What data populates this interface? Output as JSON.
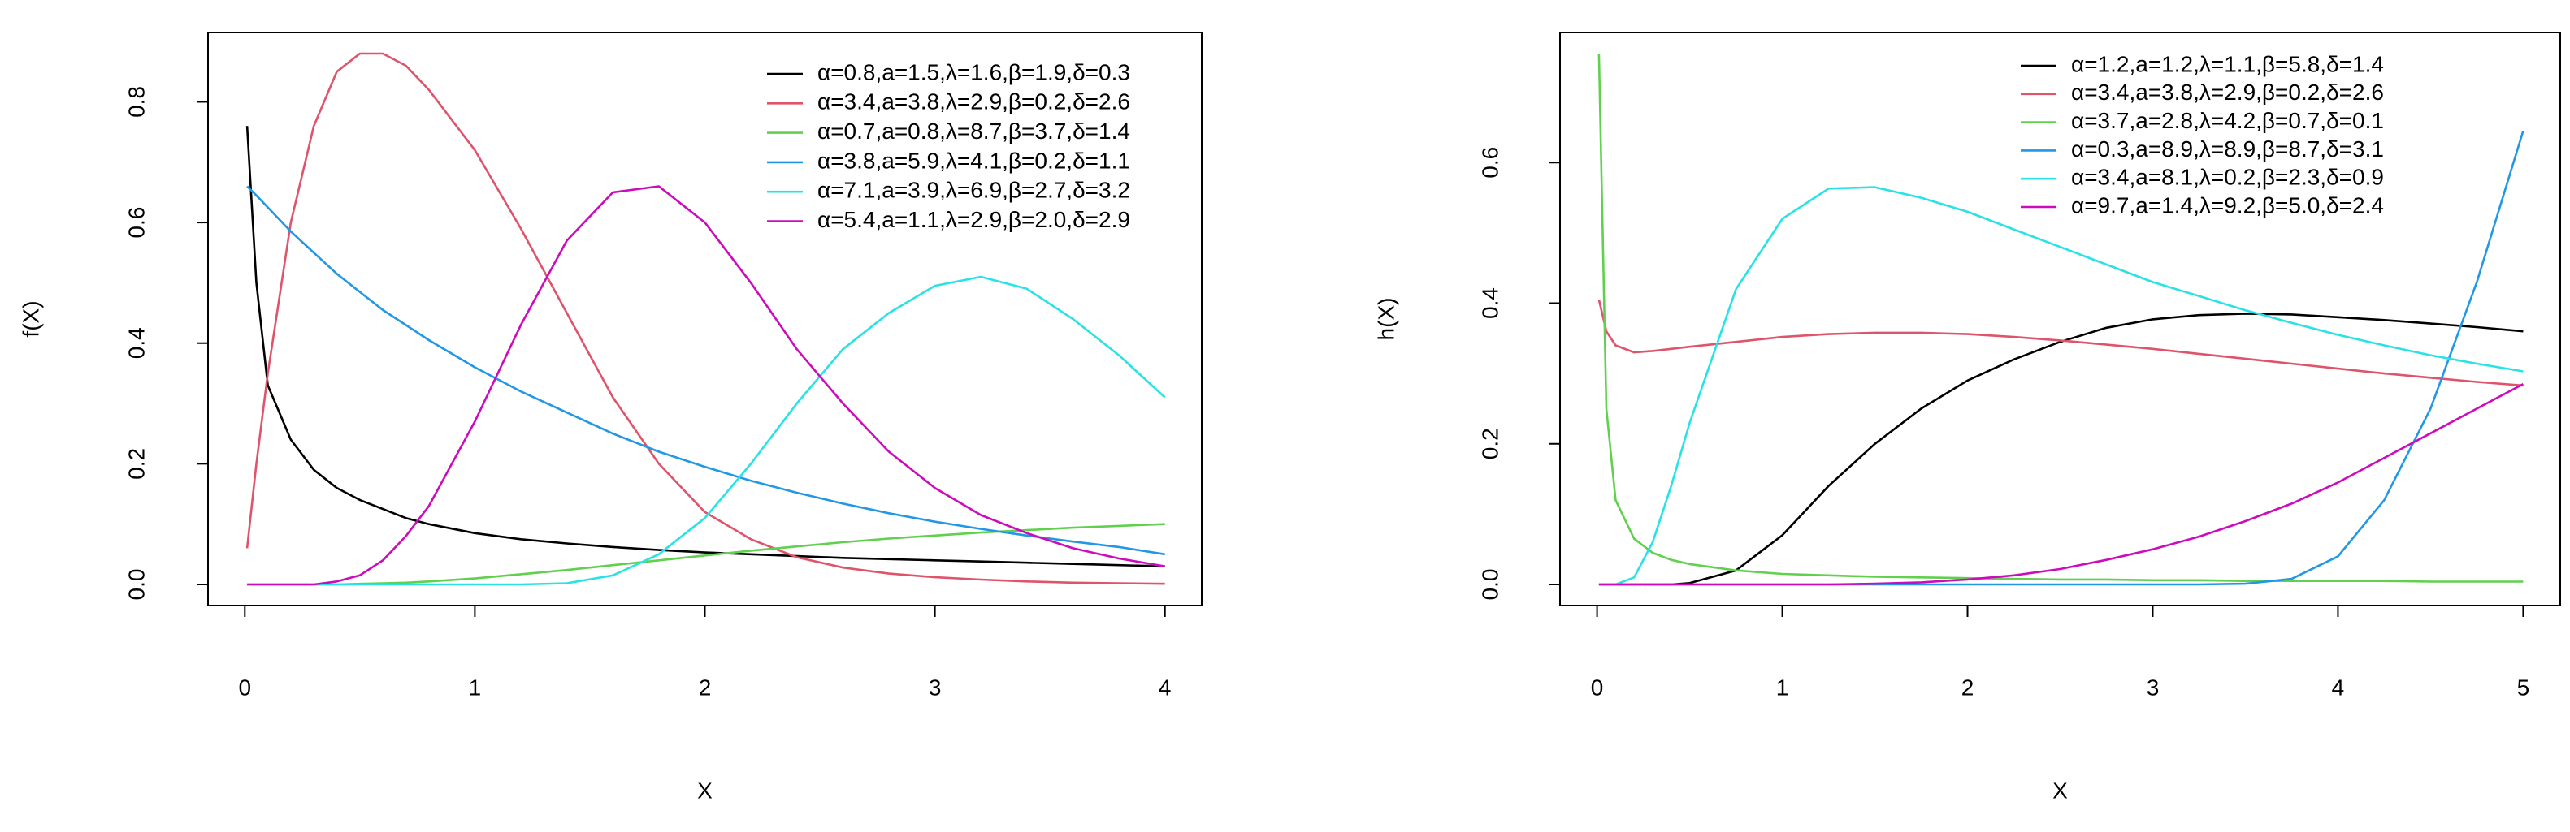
{
  "chart_data": [
    {
      "type": "line",
      "xlabel": "X",
      "ylabel": "f(X)",
      "x": [
        0.01,
        0.05,
        0.1,
        0.2,
        0.3,
        0.4,
        0.5,
        0.6,
        0.7,
        0.8,
        1.0,
        1.2,
        1.4,
        1.6,
        1.8,
        2.0,
        2.2,
        2.4,
        2.6,
        2.8,
        3.0,
        3.2,
        3.4,
        3.6,
        3.8,
        4.0
      ],
      "xlim": [
        -0.16,
        4.16
      ],
      "xticks": [
        0,
        1,
        2,
        3,
        4
      ],
      "ylim": [
        -0.035,
        0.915
      ],
      "yticks": [
        {
          "value": 0,
          "label": "0.0"
        },
        0.2,
        0.4,
        0.6,
        0.8
      ],
      "legend": "topright",
      "series": [
        {
          "name": "α=0.8,a=1.5,λ=1.6,β=1.9,δ=0.3",
          "color": "#000000",
          "values": [
            0.76,
            0.5,
            0.33,
            0.24,
            0.19,
            0.16,
            0.14,
            0.125,
            0.11,
            0.1,
            0.085,
            0.075,
            0.068,
            0.062,
            0.057,
            0.053,
            0.05,
            0.047,
            0.044,
            0.042,
            0.04,
            0.038,
            0.036,
            0.034,
            0.032,
            0.03
          ]
        },
        {
          "name": "α=3.4,a=3.8,λ=2.9,β=0.2,δ=2.6",
          "color": "#DF536B",
          "values": [
            0.06,
            0.2,
            0.35,
            0.6,
            0.76,
            0.85,
            0.88,
            0.88,
            0.86,
            0.82,
            0.72,
            0.59,
            0.45,
            0.31,
            0.2,
            0.12,
            0.075,
            0.045,
            0.028,
            0.018,
            0.012,
            0.008,
            0.005,
            0.003,
            0.002,
            0.001
          ]
        },
        {
          "name": "α=0.7,a=0.8,λ=8.7,β=3.7,δ=1.4",
          "color": "#61D04F",
          "values": [
            0,
            0,
            0,
            0,
            0,
            0,
            0.001,
            0.002,
            0.003,
            0.005,
            0.01,
            0.017,
            0.024,
            0.032,
            0.04,
            0.048,
            0.056,
            0.063,
            0.07,
            0.076,
            0.081,
            0.086,
            0.09,
            0.094,
            0.097,
            0.1
          ]
        },
        {
          "name": "α=3.8,a=5.9,λ=4.1,β=0.2,δ=1.1",
          "color": "#2297E6",
          "values": [
            0.66,
            0.645,
            0.625,
            0.585,
            0.55,
            0.515,
            0.485,
            0.455,
            0.43,
            0.405,
            0.36,
            0.32,
            0.285,
            0.25,
            0.22,
            0.195,
            0.172,
            0.152,
            0.134,
            0.118,
            0.104,
            0.092,
            0.081,
            0.071,
            0.062,
            0.05
          ]
        },
        {
          "name": "α=7.1,a=3.9,λ=6.9,β=2.7,δ=3.2",
          "color": "#28E2E5",
          "values": [
            0,
            0,
            0,
            0,
            0,
            0,
            0,
            0,
            0,
            0,
            0,
            0,
            0.002,
            0.015,
            0.05,
            0.11,
            0.2,
            0.3,
            0.39,
            0.45,
            0.495,
            0.51,
            0.49,
            0.44,
            0.38,
            0.31
          ]
        },
        {
          "name": "α=5.4,a=1.1,λ=2.9,β=2.0,δ=2.9",
          "color": "#CD0BBC",
          "values": [
            0,
            0,
            0,
            0,
            0,
            0.005,
            0.015,
            0.04,
            0.08,
            0.13,
            0.27,
            0.43,
            0.57,
            0.65,
            0.66,
            0.6,
            0.5,
            0.39,
            0.3,
            0.22,
            0.16,
            0.115,
            0.085,
            0.06,
            0.043,
            0.03
          ]
        }
      ]
    },
    {
      "type": "line",
      "xlabel": "X",
      "ylabel": "h(X)",
      "x": [
        0.01,
        0.05,
        0.1,
        0.2,
        0.3,
        0.4,
        0.5,
        0.75,
        1.0,
        1.25,
        1.5,
        1.75,
        2.0,
        2.25,
        2.5,
        2.75,
        3.0,
        3.25,
        3.5,
        3.75,
        4.0,
        4.25,
        4.5,
        4.75,
        5.0
      ],
      "xlim": [
        -0.2,
        5.2
      ],
      "xticks": [
        0,
        1,
        2,
        3,
        4,
        5
      ],
      "ylim": [
        -0.03,
        0.785
      ],
      "yticks": [
        {
          "value": 0,
          "label": "0.0"
        },
        0.2,
        0.4,
        0.6
      ],
      "legend": "topright",
      "series": [
        {
          "name": "α=1.2,a=1.2,λ=1.1,β=5.8,δ=1.4",
          "color": "#000000",
          "values": [
            0,
            0,
            0,
            0,
            0,
            0,
            0.002,
            0.02,
            0.07,
            0.14,
            0.2,
            0.25,
            0.29,
            0.32,
            0.345,
            0.365,
            0.377,
            0.383,
            0.385,
            0.384,
            0.38,
            0.376,
            0.371,
            0.366,
            0.36
          ]
        },
        {
          "name": "α=3.4,a=3.8,λ=2.9,β=0.2,δ=2.6",
          "color": "#DF536B",
          "values": [
            0.405,
            0.36,
            0.34,
            0.33,
            0.332,
            0.335,
            0.338,
            0.345,
            0.352,
            0.356,
            0.358,
            0.358,
            0.356,
            0.352,
            0.347,
            0.341,
            0.335,
            0.328,
            0.321,
            0.314,
            0.307,
            0.3,
            0.294,
            0.288,
            0.283
          ]
        },
        {
          "name": "α=3.7,a=2.8,λ=4.2,β=0.7,δ=0.1",
          "color": "#61D04F",
          "values": [
            0.755,
            0.25,
            0.12,
            0.065,
            0.045,
            0.035,
            0.029,
            0.02,
            0.015,
            0.013,
            0.011,
            0.01,
            0.009,
            0.008,
            0.007,
            0.007,
            0.006,
            0.006,
            0.005,
            0.005,
            0.005,
            0.005,
            0.004,
            0.004,
            0.004
          ]
        },
        {
          "name": "α=0.3,a=8.9,λ=8.9,β=8.7,δ=3.1",
          "color": "#2297E6",
          "values": [
            0,
            0,
            0,
            0,
            0,
            0,
            0,
            0,
            0,
            0,
            0,
            0,
            0,
            0,
            0,
            0,
            0,
            0,
            0.001,
            0.008,
            0.04,
            0.12,
            0.25,
            0.43,
            0.645
          ]
        },
        {
          "name": "α=3.4,a=8.1,λ=0.2,β=2.3,δ=0.9",
          "color": "#28E2E5",
          "values": [
            0,
            0,
            0,
            0.01,
            0.06,
            0.14,
            0.23,
            0.42,
            0.52,
            0.563,
            0.565,
            0.55,
            0.53,
            0.505,
            0.48,
            0.455,
            0.43,
            0.41,
            0.39,
            0.372,
            0.355,
            0.34,
            0.326,
            0.314,
            0.303
          ]
        },
        {
          "name": "α=9.7,a=1.4,λ=9.2,β=5.0,δ=2.4",
          "color": "#CD0BBC",
          "values": [
            0,
            0,
            0,
            0,
            0,
            0,
            0,
            0,
            0,
            0,
            0.001,
            0.003,
            0.007,
            0.013,
            0.022,
            0.035,
            0.05,
            0.068,
            0.09,
            0.115,
            0.145,
            0.18,
            0.215,
            0.25,
            0.285
          ]
        }
      ]
    }
  ]
}
